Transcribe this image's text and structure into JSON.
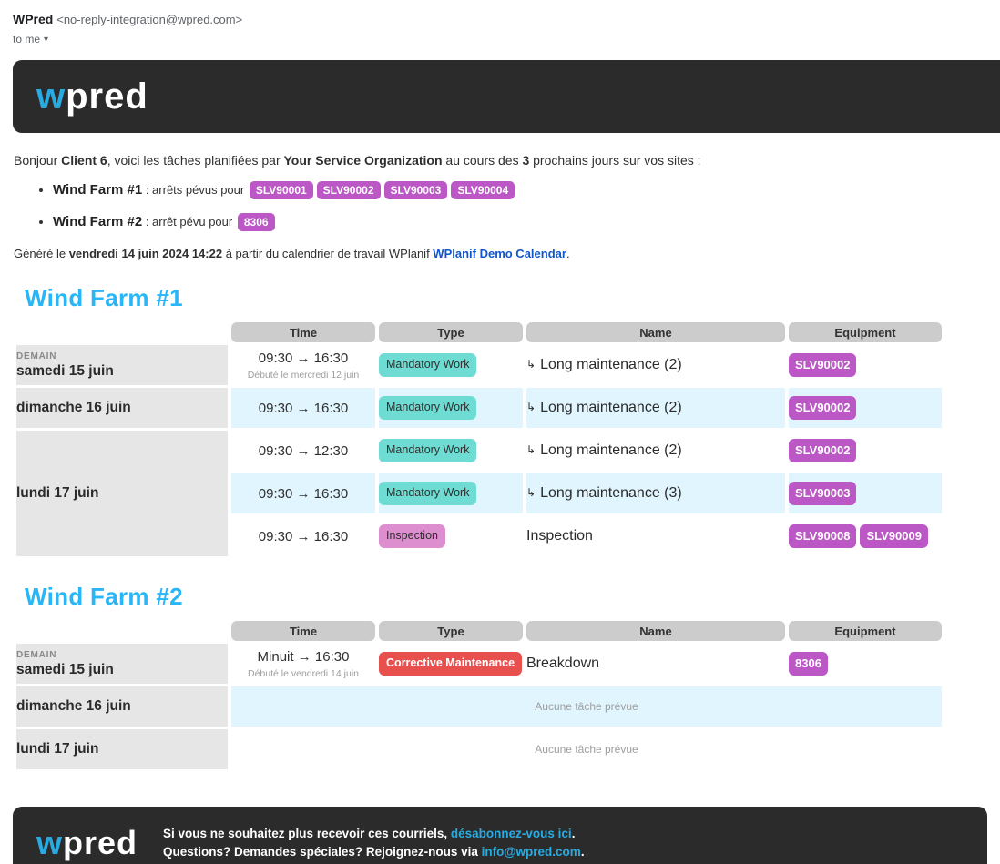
{
  "email_header": {
    "sender_name": "WPred",
    "sender_email": "<no-reply-integration@wpred.com>",
    "recipient_label": "to me",
    "expander_icon": "▾"
  },
  "brand": {
    "logo_w": "w",
    "logo_rest": "pred"
  },
  "colors": {
    "accent_cyan": "#29abe2",
    "heading_cyan": "#29b6f6",
    "dark": "#2b2b2b",
    "equipment_badge": "#bb58c5",
    "mandatory_badge": "#6edcd2",
    "inspection_badge": "#dd8ece",
    "corrective_badge": "#e8504e",
    "row_highlight": "#e1f5fe",
    "header_cell": "#cccccc",
    "date_cell": "#e6e6e6",
    "link_blue": "#1155cc"
  },
  "intro": {
    "part1": "Bonjour ",
    "client": "Client 6",
    "part2": ", voici les tâches planifiées par ",
    "organization": "Your Service Organization",
    "part3": " au cours des ",
    "days_count": "3",
    "part4": " prochains jours sur vos sites :"
  },
  "summary": [
    {
      "site": "Wind Farm #1",
      "label": " : arrêts pévus pour",
      "badges": [
        "SLV90001",
        "SLV90002",
        "SLV90003",
        "SLV90004"
      ]
    },
    {
      "site": "Wind Farm #2",
      "label": " : arrêt pévu pour",
      "badges": [
        "8306"
      ]
    }
  ],
  "generated": {
    "part1": "Généré le ",
    "datetime": "vendredi 14 juin 2024 14:22",
    "part2": " à partir du calendrier de travail WPlanif ",
    "link": "WPlanif Demo Calendar",
    "part3": "."
  },
  "sections": [
    {
      "title": "Wind Farm #1",
      "columns": [
        "Time",
        "Type",
        "Name",
        "Equipment"
      ],
      "days": [
        {
          "tag": "DEMAIN",
          "date": "samedi 15 juin",
          "tasks": [
            {
              "time": "09:30 → 16:30",
              "note": "Débuté le mercredi 12 juin",
              "type": "Mandatory Work",
              "arrow": "↳",
              "name": "Long maintenance (2)",
              "equipment": [
                "SLV90002"
              ]
            }
          ]
        },
        {
          "date": "dimanche 16 juin",
          "tasks": [
            {
              "time": "09:30 → 16:30",
              "type": "Mandatory Work",
              "arrow": "↳",
              "name": "Long maintenance (2)",
              "equipment": [
                "SLV90002"
              ]
            }
          ]
        },
        {
          "date": "lundi 17 juin",
          "tasks": [
            {
              "time": "09:30 → 12:30",
              "type": "Mandatory Work",
              "arrow": "↳",
              "name": "Long maintenance (2)",
              "equipment": [
                "SLV90002"
              ]
            },
            {
              "time": "09:30 → 16:30",
              "type": "Mandatory Work",
              "arrow": "↳",
              "name": "Long maintenance (3)",
              "equipment": [
                "SLV90003"
              ]
            },
            {
              "time": "09:30 → 16:30",
              "type": "Inspection",
              "name": "Inspection",
              "equipment": [
                "SLV90008",
                "SLV90009"
              ]
            }
          ]
        }
      ]
    },
    {
      "title": "Wind Farm #2",
      "columns": [
        "Time",
        "Type",
        "Name",
        "Equipment"
      ],
      "days": [
        {
          "tag": "DEMAIN",
          "date": "samedi 15 juin",
          "tasks": [
            {
              "time": "Minuit → 16:30",
              "note": "Débuté le vendredi 14 juin",
              "type": "Corrective Maintenance",
              "name": "Breakdown",
              "equipment": [
                "8306"
              ]
            }
          ]
        },
        {
          "date": "dimanche 16 juin",
          "empty": "Aucune tâche prévue"
        },
        {
          "date": "lundi 17 juin",
          "empty": "Aucune tâche prévue"
        }
      ]
    }
  ],
  "footer": {
    "line1_part1": "Si vous ne souhaitez plus recevoir ces courriels, ",
    "line1_link": "désabonnez-vous ici",
    "line1_part2": ".",
    "line2_part1": "Questions? Demandes spéciales? Rejoignez-nous via ",
    "line2_link": "info@wpred.com",
    "line2_part2": "."
  }
}
